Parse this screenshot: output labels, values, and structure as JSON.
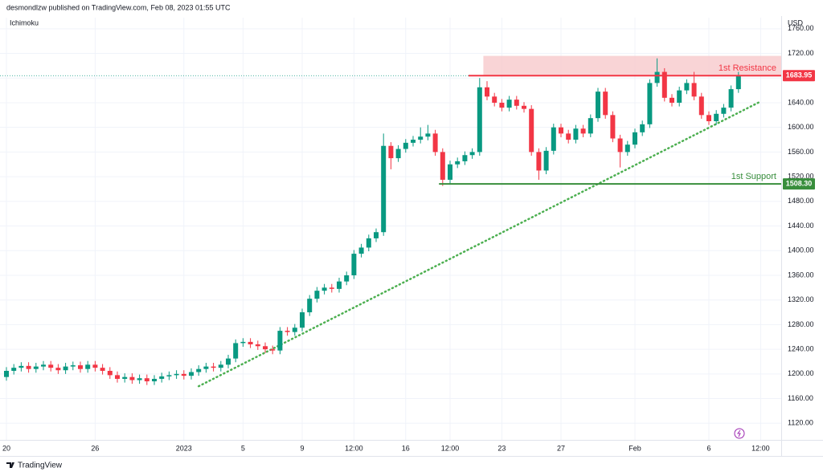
{
  "chart_data": {
    "type": "candlestick",
    "title": "desmondlzw published on TradingView.com, Feb 08, 2023 01:55 UTC",
    "indicator": "Ichimoku",
    "currency": "USD",
    "brand": "TradingView",
    "categories": [
      "20",
      null,
      null,
      null,
      null,
      null,
      null,
      null,
      null,
      null,
      null,
      null,
      "26",
      null,
      null,
      null,
      null,
      null,
      null,
      null,
      null,
      null,
      null,
      null,
      "2023",
      null,
      null,
      null,
      null,
      null,
      null,
      null,
      "5",
      null,
      null,
      null,
      null,
      null,
      null,
      null,
      "9",
      null,
      null,
      null,
      null,
      null,
      null,
      "12:00",
      null,
      null,
      null,
      null,
      null,
      null,
      "16",
      null,
      null,
      null,
      null,
      null,
      "12:00",
      null,
      null,
      null,
      null,
      null,
      null,
      "23",
      null,
      null,
      null,
      null,
      null,
      null,
      null,
      "27",
      null,
      null,
      null,
      null,
      null,
      null,
      null,
      null,
      null,
      "Feb",
      null,
      null,
      null,
      null,
      null,
      null,
      null,
      null,
      null,
      "6",
      null,
      null,
      null,
      null,
      null,
      null,
      "12:00",
      null,
      null
    ],
    "open": [
      1195,
      1205,
      1210,
      1213,
      1208,
      1212,
      1215,
      1210,
      1206,
      1212,
      1214,
      1208,
      1215,
      1210,
      1205,
      1198,
      1192,
      1195,
      1190,
      1193,
      1188,
      1192,
      1196,
      1198,
      1200,
      1197,
      1203,
      1208,
      1212,
      1210,
      1215,
      1225,
      1250,
      1252,
      1248,
      1245,
      1240,
      1238,
      1270,
      1268,
      1275,
      1300,
      1322,
      1335,
      1340,
      1338,
      1350,
      1360,
      1395,
      1405,
      1420,
      1430,
      1570,
      1550,
      1565,
      1575,
      1580,
      1585,
      1590,
      1560,
      1515,
      1540,
      1545,
      1555,
      1560,
      1665,
      1650,
      1640,
      1632,
      1645,
      1635,
      1630,
      1560,
      1530,
      1562,
      1600,
      1590,
      1580,
      1598,
      1590,
      1615,
      1658,
      1620,
      1582,
      1560,
      1572,
      1592,
      1605,
      1672,
      1690,
      1648,
      1640,
      1660,
      1672,
      1650,
      1620,
      1610,
      1622,
      1632,
      1662,
      null,
      null,
      null,
      null,
      null
    ],
    "high": [
      1211,
      1216,
      1219,
      1219,
      1218,
      1221,
      1221,
      1216,
      1218,
      1220,
      1220,
      1221,
      1221,
      1216,
      1211,
      1204,
      1201,
      1201,
      1199,
      1199,
      1198,
      1202,
      1204,
      1206,
      1206,
      1209,
      1214,
      1218,
      1218,
      1221,
      1231,
      1256,
      1258,
      1258,
      1254,
      1251,
      1246,
      1276,
      1276,
      1281,
      1306,
      1328,
      1341,
      1346,
      1346,
      1356,
      1366,
      1401,
      1411,
      1426,
      1436,
      1590,
      1576,
      1571,
      1581,
      1586,
      1600,
      1604,
      1596,
      1566,
      1546,
      1551,
      1561,
      1566,
      1680,
      1675,
      1656,
      1646,
      1651,
      1651,
      1641,
      1636,
      1566,
      1568,
      1606,
      1606,
      1596,
      1604,
      1604,
      1621,
      1664,
      1664,
      1626,
      1588,
      1578,
      1598,
      1611,
      1678,
      1712,
      1696,
      1654,
      1666,
      1678,
      1690,
      1656,
      1626,
      1628,
      1638,
      1668,
      1690,
      null,
      null,
      null,
      null,
      null
    ],
    "low": [
      1189,
      1199,
      1204,
      1202,
      1202,
      1206,
      1204,
      1200,
      1200,
      1206,
      1202,
      1202,
      1204,
      1199,
      1192,
      1186,
      1186,
      1184,
      1184,
      1182,
      1182,
      1186,
      1190,
      1192,
      1191,
      1191,
      1197,
      1202,
      1204,
      1204,
      1209,
      1219,
      1244,
      1242,
      1239,
      1234,
      1232,
      1232,
      1262,
      1262,
      1269,
      1294,
      1316,
      1329,
      1332,
      1332,
      1344,
      1354,
      1389,
      1399,
      1414,
      1424,
      1532,
      1544,
      1559,
      1569,
      1574,
      1579,
      1554,
      1505,
      1509,
      1534,
      1539,
      1549,
      1554,
      1644,
      1634,
      1626,
      1626,
      1629,
      1624,
      1554,
      1515,
      1524,
      1556,
      1584,
      1574,
      1574,
      1584,
      1584,
      1609,
      1614,
      1576,
      1535,
      1554,
      1566,
      1586,
      1599,
      1666,
      1642,
      1634,
      1634,
      1654,
      1644,
      1614,
      1604,
      1604,
      1616,
      1626,
      1656,
      null,
      null,
      null,
      null,
      null
    ],
    "close": [
      1205,
      1210,
      1213,
      1208,
      1212,
      1215,
      1210,
      1206,
      1212,
      1214,
      1208,
      1215,
      1210,
      1205,
      1198,
      1192,
      1195,
      1190,
      1193,
      1188,
      1192,
      1196,
      1198,
      1200,
      1197,
      1203,
      1208,
      1212,
      1210,
      1215,
      1225,
      1250,
      1252,
      1248,
      1245,
      1240,
      1238,
      1270,
      1268,
      1275,
      1300,
      1322,
      1335,
      1340,
      1338,
      1350,
      1360,
      1395,
      1405,
      1420,
      1430,
      1570,
      1550,
      1565,
      1575,
      1580,
      1585,
      1590,
      1560,
      1515,
      1540,
      1545,
      1555,
      1560,
      1665,
      1650,
      1640,
      1632,
      1645,
      1635,
      1630,
      1560,
      1530,
      1562,
      1600,
      1590,
      1580,
      1598,
      1590,
      1615,
      1658,
      1620,
      1582,
      1560,
      1572,
      1592,
      1605,
      1672,
      1690,
      1648,
      1640,
      1660,
      1672,
      1650,
      1620,
      1610,
      1622,
      1632,
      1662,
      1684,
      null,
      null,
      null,
      null,
      null
    ],
    "up_color": "#089981",
    "down_color": "#f23645",
    "ylim": [
      1093,
      1778
    ],
    "yticks": [
      {
        "value": 1120,
        "label": "1120.00"
      },
      {
        "value": 1160,
        "label": "1160.00"
      },
      {
        "value": 1200,
        "label": "1200.00"
      },
      {
        "value": 1240,
        "label": "1240.00"
      },
      {
        "value": 1280,
        "label": "1280.00"
      },
      {
        "value": 1320,
        "label": "1320.00"
      },
      {
        "value": 1360,
        "label": "1360.00"
      },
      {
        "value": 1400,
        "label": "1400.00"
      },
      {
        "value": 1440,
        "label": "1440.00"
      },
      {
        "value": 1480,
        "label": "1480.00"
      },
      {
        "value": 1520,
        "label": "1520.00"
      },
      {
        "value": 1560,
        "label": "1560.00"
      },
      {
        "value": 1600,
        "label": "1600.00"
      },
      {
        "value": 1640,
        "label": "1640.00"
      },
      {
        "value": 1680,
        "label": "1680.00"
      },
      {
        "value": 1720,
        "label": "1720.00"
      },
      {
        "value": 1760,
        "label": "1760.00"
      }
    ],
    "grid": true,
    "levels": [
      {
        "label": "1st Resistance",
        "value": 1683.95,
        "value_label": "1683.95",
        "color": "#f23645",
        "start": 63
      },
      {
        "label": "1st Support",
        "value": 1508.3,
        "value_label": "1508.30",
        "color": "#388e3c",
        "start": 59
      }
    ],
    "zone": {
      "from": 1683.95,
      "to": 1716,
      "start": 65,
      "color": "#f7c9cc"
    },
    "trendline": {
      "start": [
        26,
        1180
      ],
      "end": [
        102,
        1642
      ],
      "color": "#4caf50"
    }
  }
}
